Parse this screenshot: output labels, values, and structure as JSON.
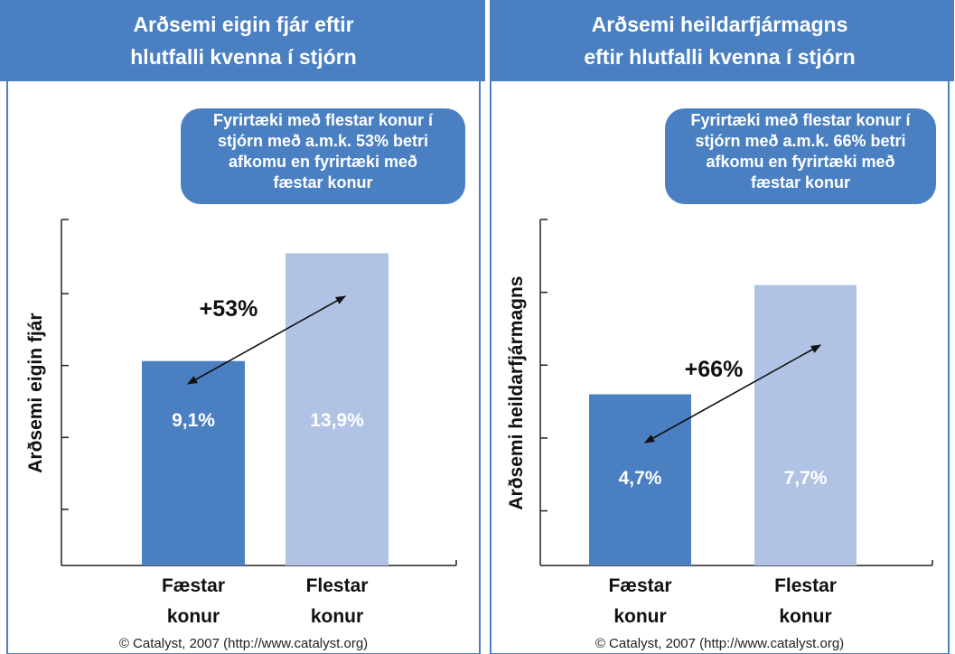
{
  "chart_data": [
    {
      "type": "bar",
      "title": [
        "Arðsemi eigin fjár eftir",
        "hlutfalli kvenna í stjórn"
      ],
      "callout": [
        "Fyrirtæki með flestar konur í",
        "stjórn með a.m.k. 53% betri",
        "afkomu en fyrirtæki með",
        "fæstar konur"
      ],
      "ylabel": "Arðsemi eigin fjár",
      "categories": [
        "Fæstar konur",
        "Flestar konur"
      ],
      "values": [
        9.1,
        13.9
      ],
      "value_labels": [
        "9,1%",
        "13,9%"
      ],
      "colors": [
        "#4a7fc1",
        "#b1c3e5"
      ],
      "annotation": "+53%",
      "ylim": [
        0,
        15.4
      ],
      "yticks": [
        2.5,
        5.7,
        8.9,
        12.1,
        15.4
      ],
      "source": "© Catalyst, 2007 (http://www.catalyst.org)"
    },
    {
      "type": "bar",
      "title": [
        "Arðsemi heildarfjármagns",
        "eftir hlutfalli kvenna í stjórn"
      ],
      "callout": [
        "Fyrirtæki með flestar konur í",
        "stjórn með a.m.k. 66% betri",
        "afkomu en fyrirtæki með",
        "fæstar konur"
      ],
      "ylabel": "Arðsemi heildarfjármagns",
      "categories": [
        "Fæstar konur",
        "Flestar konur"
      ],
      "values": [
        4.7,
        7.7
      ],
      "value_labels": [
        "4,7%",
        "7,7%"
      ],
      "colors": [
        "#4a7fc1",
        "#b1c3e5"
      ],
      "annotation": "+66%",
      "ylim": [
        0,
        9.5
      ],
      "yticks": [
        1.5,
        3.5,
        5.5,
        7.5,
        9.5
      ],
      "source": "© Catalyst, 2007 (http://www.catalyst.org)"
    }
  ]
}
